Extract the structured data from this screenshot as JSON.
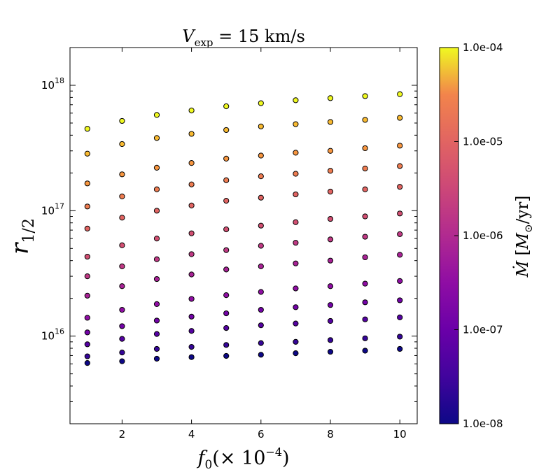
{
  "chart_data": {
    "type": "scatter",
    "title": "V_exp = 15 km/s",
    "title_parts": {
      "symbol": "V",
      "subscript": "exp",
      "rest": " = 15 km/s"
    },
    "xlabel": "f_0 (× 10^-4)",
    "xlabel_parts": {
      "symbol": "f",
      "subscript": "0",
      "open": "(",
      "times": "×",
      "base": "10",
      "exp": "−4",
      "close": ")"
    },
    "ylabel": "r_1/2",
    "ylabel_parts": {
      "symbol": "r",
      "subscript": "1/2"
    },
    "xlim": [
      0.5,
      10.5
    ],
    "ylim": [
      2000000000000000.0,
      2e+18
    ],
    "yscale": "log",
    "xticks": [
      "2",
      "4",
      "6",
      "8",
      "10"
    ],
    "xtick_values": [
      2,
      4,
      6,
      8,
      10
    ],
    "yticks": [
      {
        "base": "10",
        "exp": "16",
        "value": 1e+16
      },
      {
        "base": "10",
        "exp": "17",
        "value": 1e+17
      },
      {
        "base": "10",
        "exp": "18",
        "value": 1e+18
      }
    ],
    "x": [
      1,
      2,
      3,
      4,
      5,
      6,
      7,
      8,
      9,
      10
    ],
    "series": [
      {
        "mdot": 0.0001,
        "y": [
          4.5e+17,
          5.2e+17,
          5.8e+17,
          6.3e+17,
          6.8e+17,
          7.2e+17,
          7.6e+17,
          7.9e+17,
          8.2e+17,
          8.5e+17
        ]
      },
      {
        "mdot": 4.6e-05,
        "y": [
          2.85e+17,
          3.4e+17,
          3.8e+17,
          4.1e+17,
          4.4e+17,
          4.7e+17,
          4.9e+17,
          5.1e+17,
          5.3e+17,
          5.5e+17
        ]
      },
      {
        "mdot": 2.2e-05,
        "y": [
          1.65e+17,
          1.95e+17,
          2.2e+17,
          2.4e+17,
          2.6e+17,
          2.75e+17,
          2.9e+17,
          3e+17,
          3.15e+17,
          3.3e+17
        ]
      },
      {
        "mdot": 1e-05,
        "y": [
          1.08e+17,
          1.3e+17,
          1.48e+17,
          1.62e+17,
          1.75e+17,
          1.88e+17,
          1.97e+17,
          2.08e+17,
          2.17e+17,
          2.27e+17
        ]
      },
      {
        "mdot": 4.6e-06,
        "y": [
          7.2e+16,
          8.8e+16,
          1e+17,
          1.1e+17,
          1.2e+17,
          1.27e+17,
          1.35e+17,
          1.42e+17,
          1.48e+17,
          1.55e+17
        ]
      },
      {
        "mdot": 2.2e-06,
        "y": [
          4.3e+16,
          5.3e+16,
          6e+16,
          6.6e+16,
          7.1e+16,
          7.6e+16,
          8.1e+16,
          8.6e+16,
          9e+16,
          9.5e+16
        ]
      },
      {
        "mdot": 1e-06,
        "y": [
          3e+16,
          3.6e+16,
          4.1e+16,
          4.5e+16,
          4.85e+16,
          5.25e+16,
          5.55e+16,
          5.9e+16,
          6.2e+16,
          6.5e+16
        ]
      },
      {
        "mdot": 4.6e-07,
        "y": [
          2.1e+16,
          2.5e+16,
          2.85e+16,
          3.1e+16,
          3.4e+16,
          3.6e+16,
          3.8e+16,
          4e+16,
          4.25e+16,
          4.45e+16
        ]
      },
      {
        "mdot": 2.2e-07,
        "y": [
          1.4e+16,
          1.62e+16,
          1.8e+16,
          1.98e+16,
          2.12e+16,
          2.25e+16,
          2.4e+16,
          2.5e+16,
          2.62e+16,
          2.75e+16
        ]
      },
      {
        "mdot": 1e-07,
        "y": [
          1.07e+16,
          1.2e+16,
          1.33e+16,
          1.43e+16,
          1.52e+16,
          1.62e+16,
          1.7e+16,
          1.77e+16,
          1.86e+16,
          1.93e+16
        ]
      },
      {
        "mdot": 4.6e-08,
        "y": [
          8600000000000000.0,
          9500000000000000.0,
          1.04e+16,
          1.1e+16,
          1.16e+16,
          1.22e+16,
          1.26e+16,
          1.32e+16,
          1.36e+16,
          1.41e+16
        ]
      },
      {
        "mdot": 2.2e-08,
        "y": [
          6900000000000000.0,
          7400000000000000.0,
          7900000000000000.0,
          8200000000000000.0,
          8500000000000000.0,
          8800000000000000.0,
          9000000000000000.0,
          9300000000000000.0,
          9600000000000000.0,
          9900000000000000.0
        ]
      },
      {
        "mdot": 1e-08,
        "y": [
          6100000000000000.0,
          6300000000000000.0,
          6600000000000000.0,
          6800000000000000.0,
          6950000000000000.0,
          7100000000000000.0,
          7300000000000000.0,
          7500000000000000.0,
          7650000000000000.0,
          7900000000000000.0
        ]
      }
    ],
    "colorbar": {
      "label": "Ṁ [M⊙/yr]",
      "label_parts": {
        "symbol": "Ṁ",
        "open": "[",
        "unit_symbol": "M",
        "unit_sub": "⊙",
        "unit_rest": "/yr]"
      },
      "range": [
        1e-08,
        0.0001
      ],
      "scale": "log",
      "colormap": "plasma",
      "ticks": [
        "1.0e-04",
        "1.0e-05",
        "1.0e-06",
        "1.0e-07",
        "1.0e-08"
      ],
      "tick_values": [
        0.0001,
        1e-05,
        1e-06,
        1e-07,
        1e-08
      ]
    },
    "grid": false,
    "marker_edge_color": "#000000"
  }
}
